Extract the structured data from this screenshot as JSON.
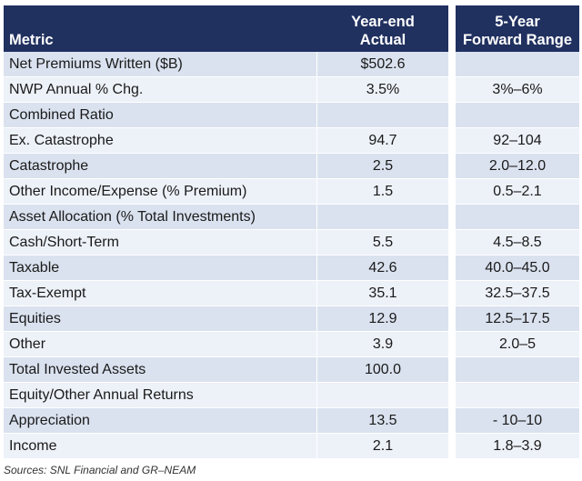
{
  "table": {
    "headers": {
      "metric": "Metric",
      "actual_line1": "Year-end",
      "actual_line2": "Actual",
      "range_line1": "5-Year",
      "range_line2": "Forward Range"
    },
    "rows": [
      {
        "metric": "Net Premiums Written ($B)",
        "actual": "$502.6",
        "range": ""
      },
      {
        "metric": "NWP Annual % Chg.",
        "actual": "3.5%",
        "range": "3%–6%"
      },
      {
        "metric": "Combined Ratio",
        "actual": "",
        "range": ""
      },
      {
        "metric": "Ex. Catastrophe",
        "actual": "94.7",
        "range": "92–104"
      },
      {
        "metric": "Catastrophe",
        "actual": "2.5",
        "range": "2.0–12.0"
      },
      {
        "metric": "Other Income/Expense (% Premium)",
        "actual": "1.5",
        "range": "0.5–2.1"
      },
      {
        "metric": "Asset Allocation (% Total Investments)",
        "actual": "",
        "range": ""
      },
      {
        "metric": "Cash/Short-Term",
        "actual": "5.5",
        "range": "4.5–8.5"
      },
      {
        "metric": "Taxable",
        "actual": "42.6",
        "range": "40.0–45.0"
      },
      {
        "metric": "Tax-Exempt",
        "actual": "35.1",
        "range": "32.5–37.5"
      },
      {
        "metric": "Equities",
        "actual": "12.9",
        "range": "12.5–17.5"
      },
      {
        "metric": "Other",
        "actual": "3.9",
        "range": "2.0–5"
      },
      {
        "metric": "Total Invested Assets",
        "actual": "100.0",
        "range": ""
      },
      {
        "metric": "Equity/Other Annual Returns",
        "actual": "",
        "range": ""
      },
      {
        "metric": "Appreciation",
        "actual": "13.5",
        "range": "- 10–10"
      },
      {
        "metric": "Income",
        "actual": "2.1",
        "range": "1.8–3.9"
      }
    ]
  },
  "source": "Sources: SNL Financial and GR–NEAM",
  "colors": {
    "header_bg": "#20305f",
    "row_dark": "#dae2ef",
    "row_light": "#edf1f8"
  }
}
